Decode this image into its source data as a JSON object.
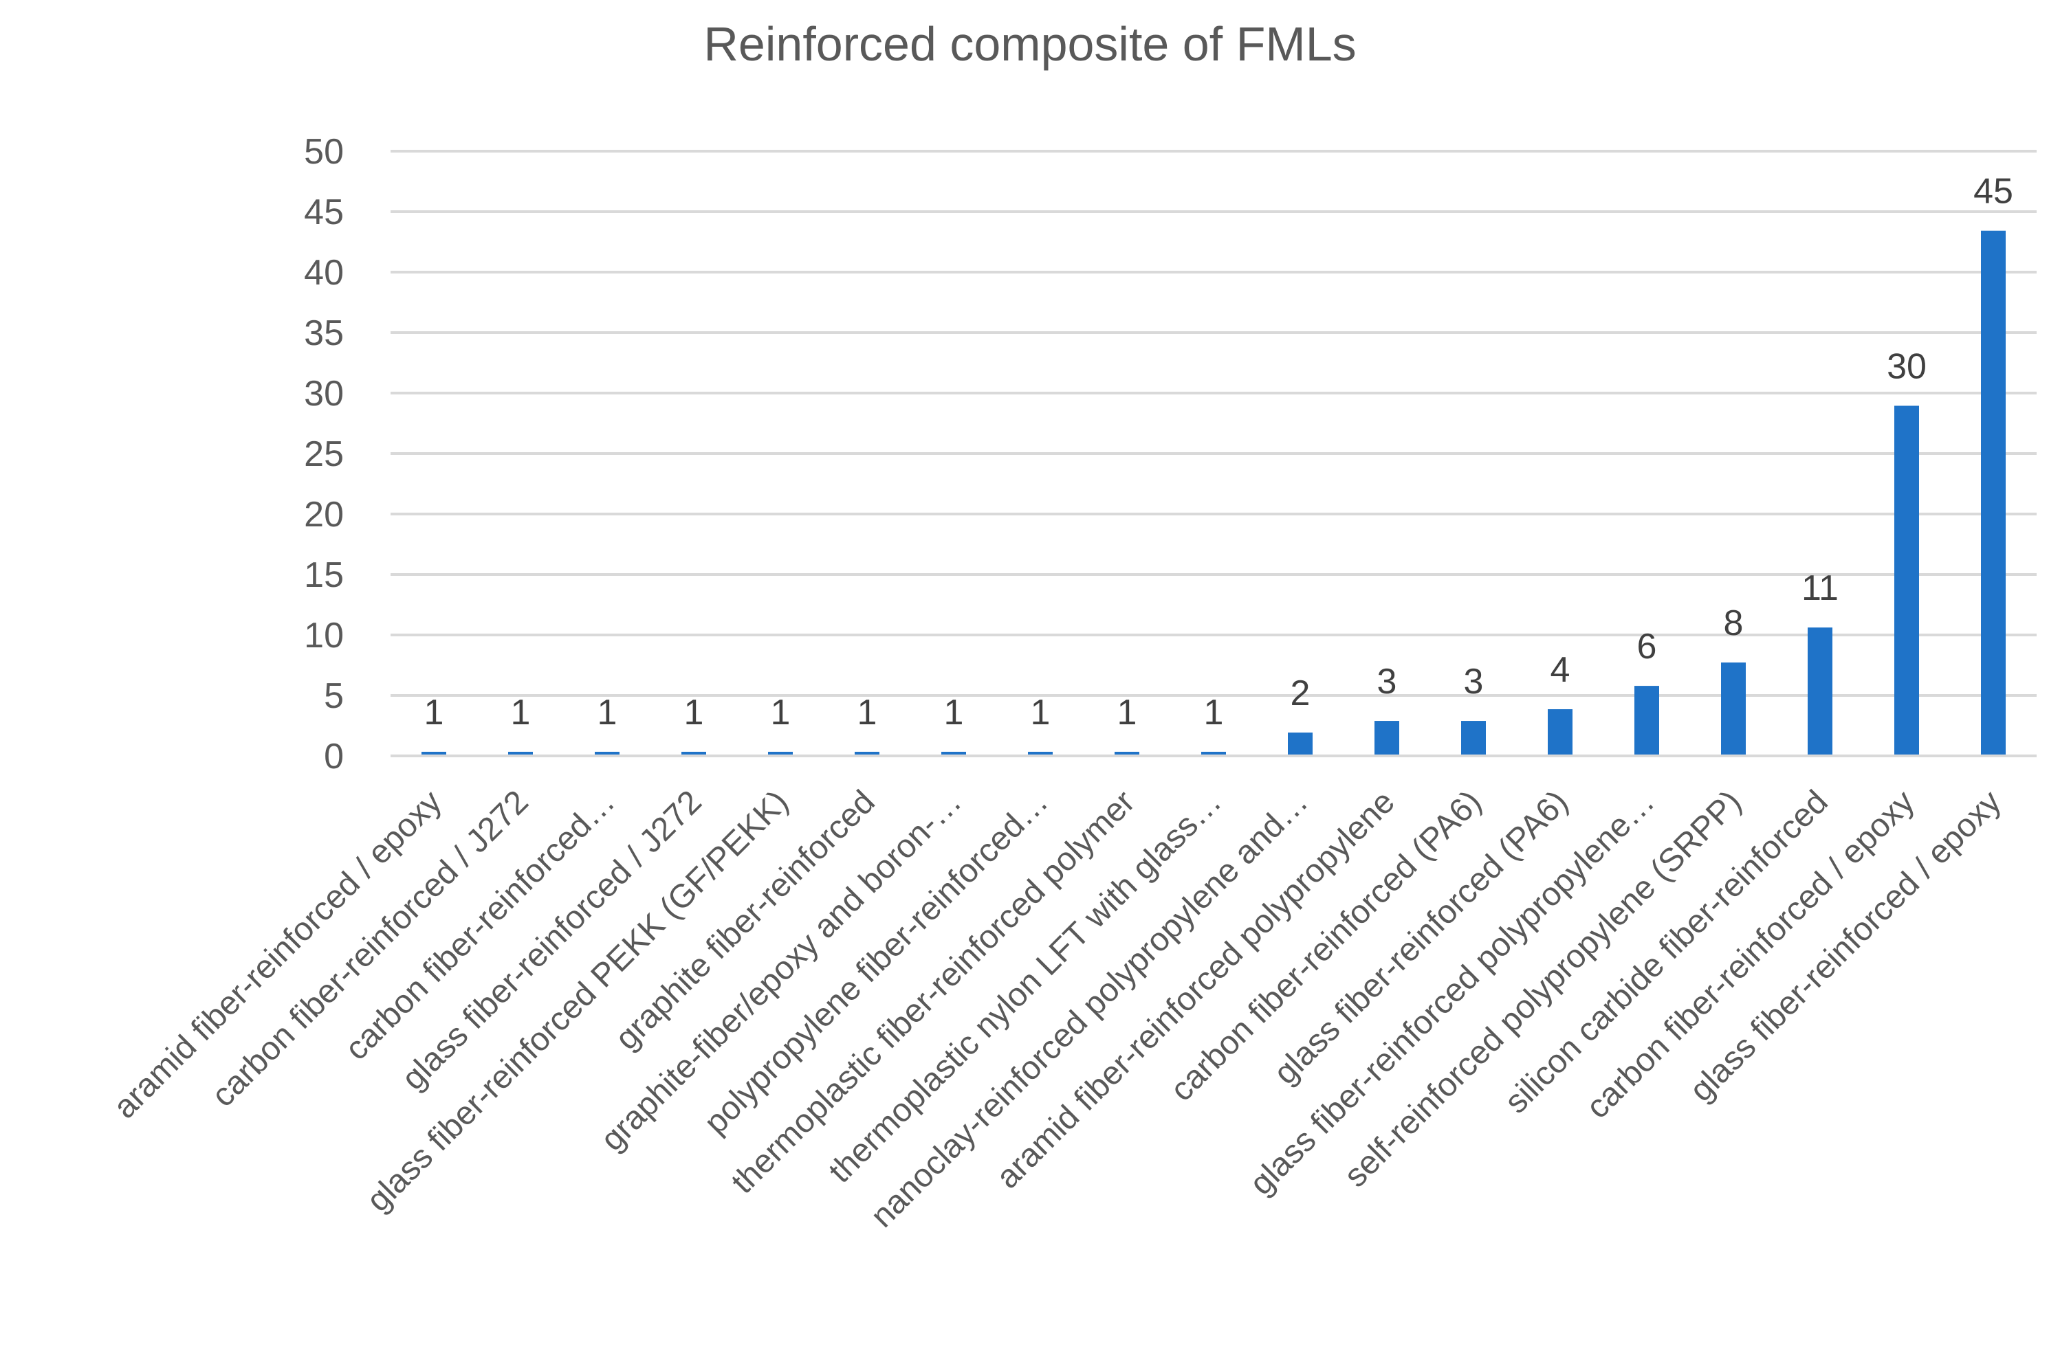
{
  "chart_data": {
    "type": "bar",
    "title": "Reinforced composite of FMLs",
    "xlabel": "",
    "ylabel": "",
    "ylim": [
      0,
      50
    ],
    "yticks": [
      "0",
      "5",
      "10",
      "15",
      "20",
      "25",
      "30",
      "35",
      "40",
      "45",
      "50"
    ],
    "grid": true,
    "bar_color": "#1f73c8",
    "categories": [
      "aramid fiber-reinforced / epoxy",
      "carbon fiber-reinforced / J272",
      "carbon fiber-reinforced…",
      "glass fiber-reinforced / J272",
      "glass fiber-reinforced PEKK (GF/PEKK)",
      "graphite fiber-reinforced",
      "graphite-fiber/epoxy and boron-…",
      "polypropylene fiber-reinforced…",
      "thermoplastic fiber-reinforced polymer",
      "thermoplastic nylon LFT with glass…",
      "nanoclay-reinforced polypropylene and…",
      "aramid fiber-reinforced polypropylene",
      "carbon fiber-reinforced (PA6)",
      "glass fiber-reinforced (PA6)",
      "glass fiber-reinforced polypropylene…",
      "self-reinforced polypropylene (SRPP)",
      "silicon carbide fiber-reinforced",
      "carbon fiber-reinforced / epoxy",
      "glass fiber-reinforced / epoxy"
    ],
    "values": [
      1,
      1,
      1,
      1,
      1,
      1,
      1,
      1,
      1,
      1,
      2,
      3,
      3,
      4,
      6,
      8,
      11,
      30,
      45
    ],
    "data_labels": [
      "1",
      "1",
      "1",
      "1",
      "1",
      "1",
      "1",
      "1",
      "1",
      "1",
      "2",
      "3",
      "3",
      "4",
      "6",
      "8",
      "11",
      "30",
      "45"
    ]
  }
}
